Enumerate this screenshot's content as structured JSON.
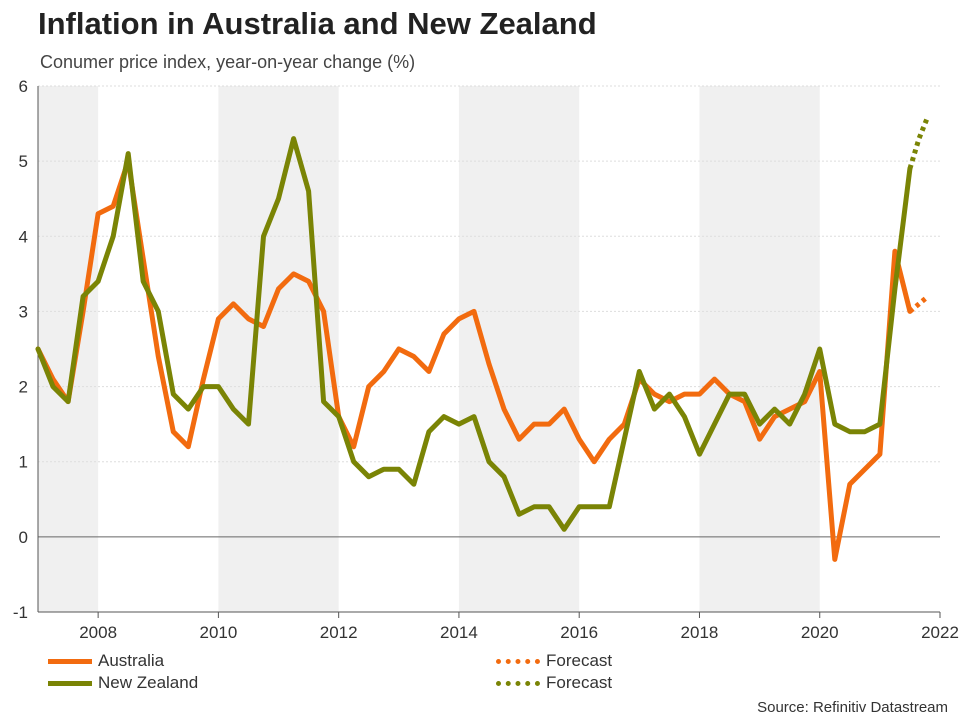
{
  "title": "Inflation in Australia and New Zealand",
  "subtitle": "Conumer price index, year-on-year change (%)",
  "source": "Source: Refinitiv Datastream",
  "colors": {
    "australia": "#f26b0f",
    "new_zealand": "#7a8405",
    "band": "#f0f0f0",
    "zero_line": "#666666",
    "grid": "#dddddd"
  },
  "legend": {
    "australia": "Australia",
    "new_zealand": "New Zealand",
    "forecast_au": "Forecast",
    "forecast_nz": "Forecast"
  },
  "chart_data": {
    "type": "line",
    "title": "Inflation in Australia and New Zealand",
    "ylabel": "Conumer price index, year-on-year change (%)",
    "xlim": [
      2007.0,
      2022.0
    ],
    "ylim": [
      -1,
      6
    ],
    "yticks": [
      -1,
      0,
      1,
      2,
      3,
      4,
      5,
      6
    ],
    "xticks": [
      2008,
      2010,
      2012,
      2014,
      2016,
      2018,
      2020,
      2022
    ],
    "shaded_bands": [
      [
        2007.0,
        2008.0
      ],
      [
        2010.0,
        2012.0
      ],
      [
        2014.0,
        2016.0
      ],
      [
        2018.0,
        2020.0
      ]
    ],
    "series": [
      {
        "name": "Australia",
        "x": [
          2007.0,
          2007.25,
          2007.5,
          2007.75,
          2008.0,
          2008.25,
          2008.5,
          2008.75,
          2009.0,
          2009.25,
          2009.5,
          2009.75,
          2010.0,
          2010.25,
          2010.5,
          2010.75,
          2011.0,
          2011.25,
          2011.5,
          2011.75,
          2012.0,
          2012.25,
          2012.5,
          2012.75,
          2013.0,
          2013.25,
          2013.5,
          2013.75,
          2014.0,
          2014.25,
          2014.5,
          2014.75,
          2015.0,
          2015.25,
          2015.5,
          2015.75,
          2016.0,
          2016.25,
          2016.5,
          2016.75,
          2017.0,
          2017.25,
          2017.5,
          2017.75,
          2018.0,
          2018.25,
          2018.5,
          2018.75,
          2019.0,
          2019.25,
          2019.5,
          2019.75,
          2020.0,
          2020.25,
          2020.5,
          2020.75,
          2021.0,
          2021.25,
          2021.5
        ],
        "values": [
          2.5,
          2.1,
          1.8,
          3.0,
          4.3,
          4.4,
          5.0,
          3.7,
          2.4,
          1.4,
          1.2,
          2.1,
          2.9,
          3.1,
          2.9,
          2.8,
          3.3,
          3.5,
          3.4,
          3.0,
          1.6,
          1.2,
          2.0,
          2.2,
          2.5,
          2.4,
          2.2,
          2.7,
          2.9,
          3.0,
          2.3,
          1.7,
          1.3,
          1.5,
          1.5,
          1.7,
          1.3,
          1.0,
          1.3,
          1.5,
          2.1,
          1.9,
          1.8,
          1.9,
          1.9,
          2.1,
          1.9,
          1.8,
          1.3,
          1.6,
          1.7,
          1.8,
          2.2,
          -0.3,
          0.7,
          0.9,
          1.1,
          3.8,
          3.0
        ],
        "forecast": {
          "name": "Forecast",
          "x": [
            2021.5,
            2021.65,
            2021.8
          ],
          "values": [
            3.0,
            3.1,
            3.2
          ]
        }
      },
      {
        "name": "New Zealand",
        "x": [
          2007.0,
          2007.25,
          2007.5,
          2007.75,
          2008.0,
          2008.25,
          2008.5,
          2008.75,
          2009.0,
          2009.25,
          2009.5,
          2009.75,
          2010.0,
          2010.25,
          2010.5,
          2010.75,
          2011.0,
          2011.25,
          2011.5,
          2011.75,
          2012.0,
          2012.25,
          2012.5,
          2012.75,
          2013.0,
          2013.25,
          2013.5,
          2013.75,
          2014.0,
          2014.25,
          2014.5,
          2014.75,
          2015.0,
          2015.25,
          2015.5,
          2015.75,
          2016.0,
          2016.25,
          2016.5,
          2016.75,
          2017.0,
          2017.25,
          2017.5,
          2017.75,
          2018.0,
          2018.25,
          2018.5,
          2018.75,
          2019.0,
          2019.25,
          2019.5,
          2019.75,
          2020.0,
          2020.25,
          2020.5,
          2020.75,
          2021.0,
          2021.25,
          2021.5
        ],
        "values": [
          2.5,
          2.0,
          1.8,
          3.2,
          3.4,
          4.0,
          5.1,
          3.4,
          3.0,
          1.9,
          1.7,
          2.0,
          2.0,
          1.7,
          1.5,
          4.0,
          4.5,
          5.3,
          4.6,
          1.8,
          1.6,
          1.0,
          0.8,
          0.9,
          0.9,
          0.7,
          1.4,
          1.6,
          1.5,
          1.6,
          1.0,
          0.8,
          0.3,
          0.4,
          0.4,
          0.1,
          0.4,
          0.4,
          0.4,
          1.3,
          2.2,
          1.7,
          1.9,
          1.6,
          1.1,
          1.5,
          1.9,
          1.9,
          1.5,
          1.7,
          1.5,
          1.9,
          2.5,
          1.5,
          1.4,
          1.4,
          1.5,
          3.3,
          4.9
        ],
        "forecast": {
          "name": "Forecast",
          "x": [
            2021.5,
            2021.65,
            2021.8
          ],
          "values": [
            4.9,
            5.3,
            5.6
          ]
        }
      }
    ]
  }
}
